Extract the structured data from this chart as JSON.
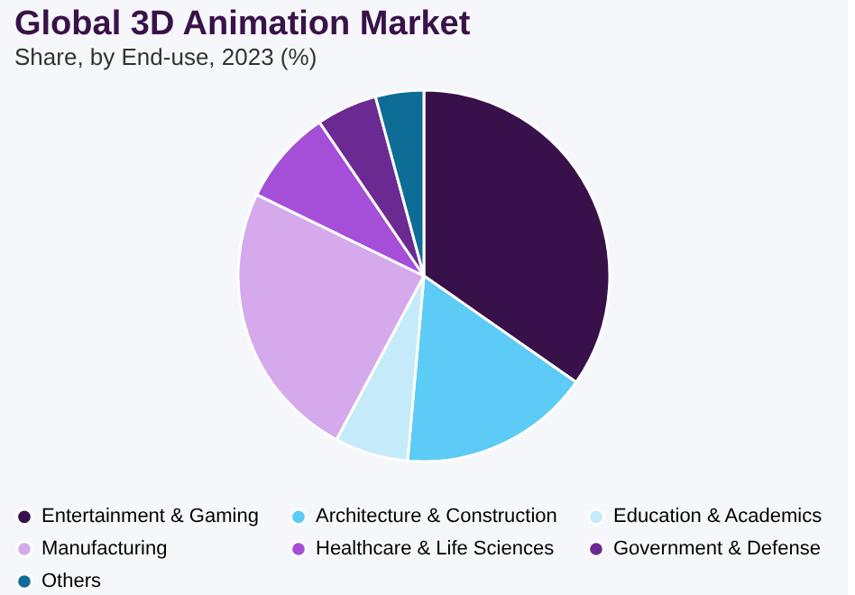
{
  "chart_data": {
    "type": "pie",
    "title": "Global 3D Animation Market",
    "subtitle": "Share, by End-use, 2023 (%)",
    "categories": [
      "Entertainment & Gaming",
      "Architecture & Construction",
      "Education & Academics",
      "Manufacturing",
      "Healthcare & Life Sciences",
      "Government & Defense",
      "Others"
    ],
    "values": [
      34.7,
      16.7,
      6.4,
      24.4,
      8.3,
      5.3,
      4.2
    ],
    "colors": [
      "#39114a",
      "#5ccbf5",
      "#c5eaf9",
      "#d6a9ec",
      "#a54fd8",
      "#6a2a92",
      "#0e6d96"
    ],
    "legend": "bottom"
  }
}
